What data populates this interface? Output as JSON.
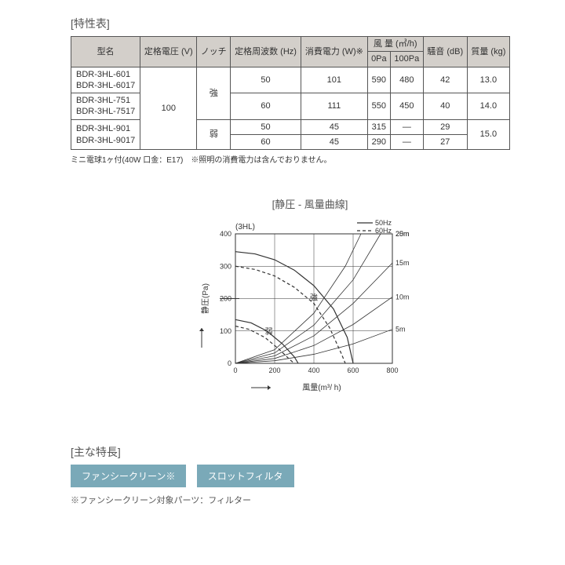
{
  "spec_table": {
    "title": "[特性表]",
    "headers": {
      "model": "型名",
      "voltage": "定格電圧\n(V)",
      "notch": "ノッチ",
      "freq": "定格周波数\n(Hz)",
      "power": "消費電力\n(W)※",
      "airflow": "風 量  (㎥/h)",
      "air_0": "0Pa",
      "air_100": "100Pa",
      "noise": "騒音\n(dB)",
      "mass": "質量\n(kg)"
    },
    "voltage": "100",
    "notch_strong": "強",
    "notch_weak": "弱",
    "rows": [
      {
        "models": [
          "BDR-3HL-601",
          "BDR-3HL-6017"
        ],
        "freq": "50",
        "power": "101",
        "a0": "590",
        "a100": "480",
        "noise": "42",
        "mass": "13.0"
      },
      {
        "models": [
          "BDR-3HL-751",
          "BDR-3HL-7517"
        ],
        "freq": "60",
        "power": "111",
        "a0": "550",
        "a100": "450",
        "noise": "40",
        "mass": "14.0"
      },
      {
        "models": [
          "BDR-3HL-901",
          "BDR-3HL-9017"
        ],
        "freq": "50",
        "power": "45",
        "a0": "315",
        "a100": "—",
        "noise": "29",
        "mass": "15.0"
      },
      {
        "models_cont": true,
        "freq": "60",
        "power": "45",
        "a0": "290",
        "a100": "—",
        "noise": "27"
      }
    ],
    "footnote": "ミニ電球1ヶ付(40W 口金：E17)　※照明の消費電力は含んでおりません。"
  },
  "chart": {
    "title": "[静圧 - 風量曲線]",
    "series_label": "(3HL)",
    "legend_50": "50Hz",
    "legend_60": "60Hz",
    "xlabel": "風量(m³/ h)",
    "ylabel": "静圧(Pa)",
    "xlim": [
      0,
      800
    ],
    "ylim": [
      0,
      400
    ],
    "xticks": [
      0,
      200,
      400,
      600,
      800
    ],
    "yticks": [
      0,
      100,
      200,
      300,
      400
    ],
    "duct_labels": [
      "5m",
      "10m",
      "15m",
      "20m",
      "25m"
    ],
    "strong_label": "強",
    "weak_label": "弱",
    "line_color": "#333",
    "grid_color": "#333",
    "bg": "#ffffff",
    "fan_50_strong": [
      [
        0,
        345
      ],
      [
        100,
        338
      ],
      [
        200,
        320
      ],
      [
        300,
        288
      ],
      [
        400,
        240
      ],
      [
        500,
        168
      ],
      [
        570,
        80
      ],
      [
        600,
        0
      ]
    ],
    "fan_60_strong": [
      [
        0,
        300
      ],
      [
        100,
        290
      ],
      [
        200,
        270
      ],
      [
        300,
        235
      ],
      [
        400,
        185
      ],
      [
        480,
        110
      ],
      [
        540,
        30
      ],
      [
        560,
        0
      ]
    ],
    "fan_50_weak": [
      [
        0,
        135
      ],
      [
        80,
        125
      ],
      [
        160,
        100
      ],
      [
        240,
        60
      ],
      [
        300,
        20
      ],
      [
        320,
        0
      ]
    ],
    "fan_60_weak": [
      [
        0,
        115
      ],
      [
        70,
        105
      ],
      [
        150,
        80
      ],
      [
        220,
        45
      ],
      [
        280,
        10
      ],
      [
        300,
        0
      ]
    ],
    "duct_curves": {
      "5m": [
        [
          0,
          0
        ],
        [
          200,
          8
        ],
        [
          400,
          28
        ],
        [
          600,
          60
        ],
        [
          800,
          105
        ]
      ],
      "10m": [
        [
          0,
          0
        ],
        [
          200,
          15
        ],
        [
          400,
          55
        ],
        [
          600,
          120
        ],
        [
          800,
          205
        ]
      ],
      "15m": [
        [
          0,
          0
        ],
        [
          200,
          23
        ],
        [
          400,
          85
        ],
        [
          600,
          185
        ],
        [
          800,
          310
        ]
      ],
      "20m": [
        [
          0,
          0
        ],
        [
          200,
          32
        ],
        [
          400,
          118
        ],
        [
          600,
          258
        ],
        [
          740,
          400
        ]
      ],
      "25m": [
        [
          0,
          0
        ],
        [
          200,
          42
        ],
        [
          400,
          155
        ],
        [
          560,
          300
        ],
        [
          640,
          400
        ]
      ]
    }
  },
  "features": {
    "title": "[主な特長]",
    "badge1": "ファンシークリーン※",
    "badge2": "スロットフィルタ",
    "note": "※ファンシークリーン対象パーツ：フィルター"
  }
}
